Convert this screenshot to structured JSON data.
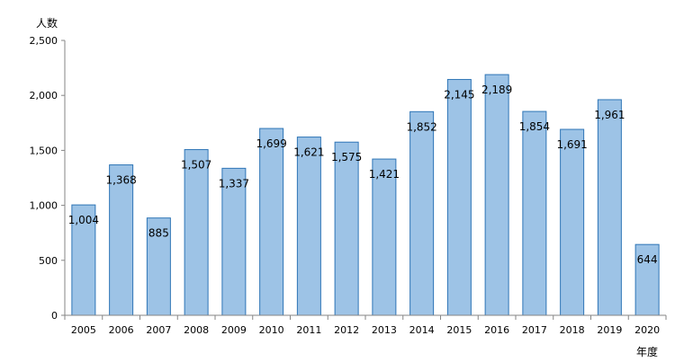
{
  "chart_data": {
    "type": "bar",
    "categories": [
      "2005",
      "2006",
      "2007",
      "2008",
      "2009",
      "2010",
      "2011",
      "2012",
      "2013",
      "2014",
      "2015",
      "2016",
      "2017",
      "2018",
      "2019",
      "2020"
    ],
    "values": [
      1004,
      1368,
      885,
      1507,
      1337,
      1699,
      1621,
      1575,
      1421,
      1852,
      2145,
      2189,
      1854,
      1691,
      1961,
      644
    ],
    "value_labels": [
      "1,004",
      "1,368",
      "885",
      "1,507",
      "1,337",
      "1,699",
      "1,621",
      "1,575",
      "1,421",
      "1,852",
      "2,145",
      "2,189",
      "1,854",
      "1,691",
      "1,961",
      "644"
    ],
    "ylabel": "人数",
    "xlabel": "年度",
    "ylim": [
      0,
      2500
    ],
    "yticks": [
      0,
      500,
      1000,
      1500,
      2000,
      2500
    ],
    "ytick_labels": [
      "0",
      "500",
      "1,000",
      "1,500",
      "2,000",
      "2,500"
    ],
    "grid": false,
    "legend": "none",
    "colors": {
      "bar_fill": "#9DC3E6",
      "bar_stroke": "#2E75B6",
      "axis": "#868686"
    }
  }
}
